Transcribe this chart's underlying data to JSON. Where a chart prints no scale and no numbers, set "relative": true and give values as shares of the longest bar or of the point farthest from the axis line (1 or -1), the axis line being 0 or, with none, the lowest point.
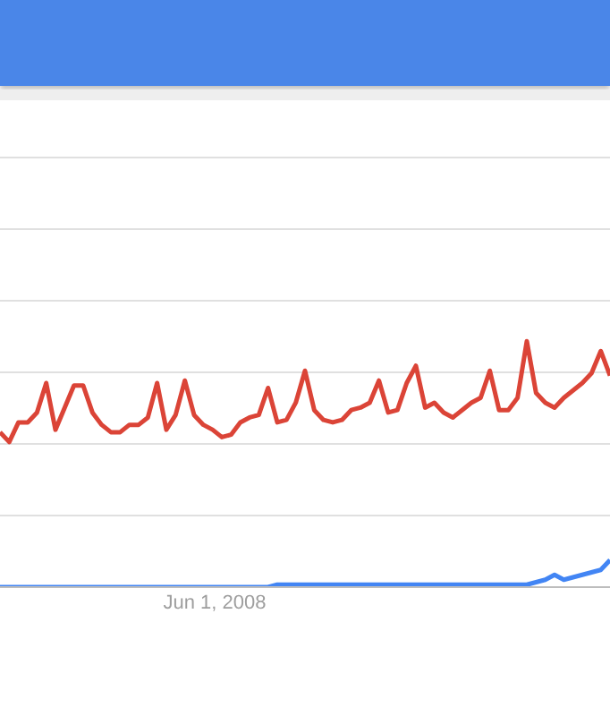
{
  "chart_data": {
    "type": "line",
    "relative": true,
    "grid": true,
    "marker": "none",
    "line_style": "solid",
    "categories": [
      null,
      null,
      null,
      null,
      null,
      null,
      null,
      null,
      null,
      null,
      null,
      null,
      null,
      null,
      null,
      null,
      null,
      null,
      null,
      null,
      null,
      null,
      null,
      null,
      null,
      null,
      null,
      null,
      null,
      null,
      null,
      null,
      null,
      null,
      null,
      null,
      null,
      null,
      null,
      null,
      null,
      null,
      null,
      null,
      null,
      null,
      null,
      null,
      null,
      null,
      null,
      null,
      null,
      null,
      null,
      null,
      null,
      null,
      null,
      null,
      null,
      null,
      null,
      null,
      null,
      null,
      null
    ],
    "annotations": [
      "Jun 1, 2008"
    ],
    "series": [
      {
        "color": "#db4437",
        "values": [
          0.63,
          0.59,
          0.67,
          0.67,
          0.71,
          0.83,
          0.64,
          0.73,
          0.82,
          0.82,
          0.71,
          0.66,
          0.63,
          0.63,
          0.66,
          0.66,
          0.69,
          0.83,
          0.64,
          0.7,
          0.84,
          0.7,
          0.66,
          0.64,
          0.61,
          0.62,
          0.67,
          0.69,
          0.7,
          0.81,
          0.67,
          0.68,
          0.75,
          0.88,
          0.72,
          0.68,
          0.67,
          0.68,
          0.72,
          0.73,
          0.75,
          0.84,
          0.71,
          0.72,
          0.83,
          0.9,
          0.73,
          0.75,
          0.71,
          0.69,
          0.72,
          0.75,
          0.77,
          0.88,
          0.72,
          0.72,
          0.77,
          1.0,
          0.79,
          0.75,
          0.73,
          0.77,
          0.8,
          0.83,
          0.87,
          0.96,
          0.86
        ]
      },
      {
        "color": "#4285f4",
        "values": [
          0,
          0,
          0,
          0,
          0,
          0,
          0,
          0,
          0,
          0,
          0,
          0,
          0,
          0,
          0,
          0,
          0,
          0,
          0,
          0,
          0,
          0,
          0,
          0,
          0,
          0,
          0,
          0,
          0,
          0,
          0.01,
          0.01,
          0.01,
          0.01,
          0.01,
          0.01,
          0.01,
          0.01,
          0.01,
          0.01,
          0.01,
          0.01,
          0.01,
          0.01,
          0.01,
          0.01,
          0.01,
          0.01,
          0.01,
          0.01,
          0.01,
          0.01,
          0.01,
          0.01,
          0.01,
          0.01,
          0.01,
          0.01,
          0.02,
          0.03,
          0.05,
          0.03,
          0.04,
          0.05,
          0.06,
          0.07,
          0.11
        ]
      }
    ]
  }
}
